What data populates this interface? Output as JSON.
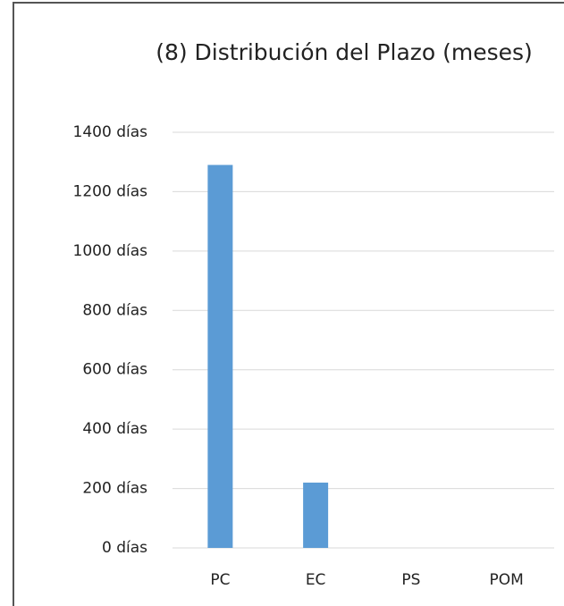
{
  "chart_data": {
    "type": "bar",
    "title": "(8) Distribución del Plazo (meses)",
    "categories": [
      "PC",
      "EC",
      "PS",
      "POM"
    ],
    "values": [
      1290,
      220,
      0,
      0
    ],
    "color": "#5b9bd5",
    "ylim": [
      0,
      1400
    ],
    "yticks": [
      {
        "value": 0,
        "label": "0 días"
      },
      {
        "value": 200,
        "label": "200 días"
      },
      {
        "value": 400,
        "label": "400 días"
      },
      {
        "value": 600,
        "label": "600 días"
      },
      {
        "value": 800,
        "label": "800 días"
      },
      {
        "value": 1000,
        "label": "1000 días"
      },
      {
        "value": 1200,
        "label": "1200 días"
      },
      {
        "value": 1400,
        "label": "1400 días"
      }
    ],
    "grid": true
  }
}
